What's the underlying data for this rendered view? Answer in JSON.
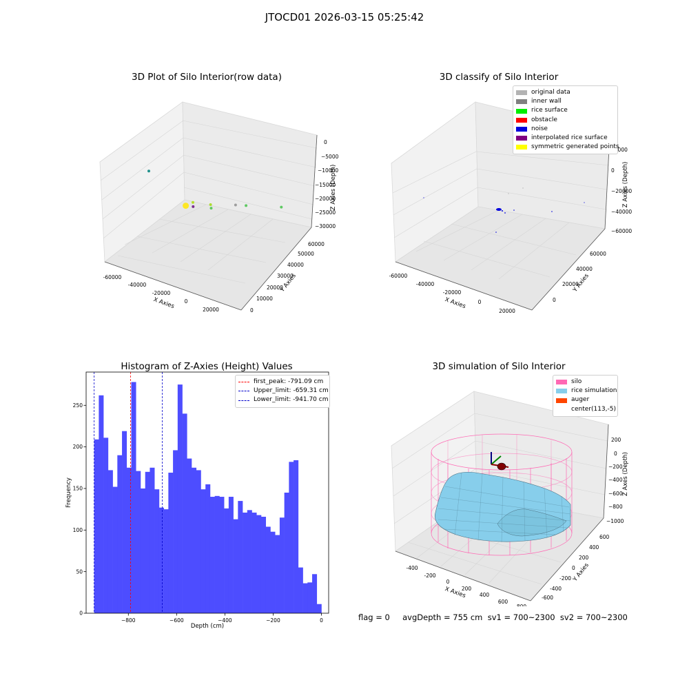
{
  "suptitle": "JTOCD01 2026-03-15 05:25:42",
  "chart_data": [
    {
      "type": "scatter",
      "projection": "3d",
      "title": "3D Plot of Silo Interior(row data)",
      "xlabel": "X Axies",
      "ylabel": "Y Axies",
      "zlabel": "Z Axies (Depth)",
      "x_ticks": [
        "-60000",
        "-40000",
        "-20000",
        "0",
        "20000"
      ],
      "y_ticks": [
        "0",
        "10000",
        "20000",
        "30000",
        "40000",
        "50000",
        "60000"
      ],
      "z_ticks": [
        "0",
        "−5000",
        "−10000",
        "−15000",
        "−20000",
        "−25000",
        "−30000"
      ],
      "points": [
        {
          "x": -30000,
          "y": 25000,
          "z": -17000,
          "color": "#fde725"
        },
        {
          "x": -25000,
          "y": 25000,
          "z": -19000,
          "color": "#b5de2b"
        },
        {
          "x": -17000,
          "y": 30000,
          "z": -18000,
          "color": "#addc30"
        },
        {
          "x": -20000,
          "y": 34000,
          "z": -15000,
          "color": "#5ec962"
        },
        {
          "x": -3000,
          "y": 34000,
          "z": -19000,
          "color": "#9e9e9e"
        },
        {
          "x": 6000,
          "y": 32000,
          "z": -21000,
          "color": "#5ec962"
        },
        {
          "x": 22000,
          "y": 42000,
          "z": -20000,
          "color": "#5ec962"
        },
        {
          "x": -60000,
          "y": 30000,
          "z": -22000,
          "color": "#21918c"
        },
        {
          "x": -6000,
          "y": 3000,
          "z": -28000,
          "color": "#7b2d8e"
        }
      ]
    },
    {
      "type": "scatter",
      "projection": "3d",
      "title": "3D classify of Silo Interior",
      "xlabel": "X Axies",
      "ylabel": "Y Axies",
      "zlabel": "Z Axies (Depth)",
      "x_ticks": [
        "-60000",
        "-40000",
        "-20000",
        "0",
        "20000"
      ],
      "y_ticks": [
        "0",
        "20000",
        "40000",
        "60000"
      ],
      "z_ticks": [
        "20000",
        "0",
        "−20000",
        "−40000",
        "−60000"
      ],
      "legend": [
        {
          "label": "original data",
          "color": "#b3b3b3"
        },
        {
          "label": "inner wall",
          "color": "#808080"
        },
        {
          "label": "rice surface",
          "color": "#00ee00"
        },
        {
          "label": "obstacle",
          "color": "#ff0000"
        },
        {
          "label": "noise",
          "color": "#0000dd"
        },
        {
          "label": "interpolated rice surface",
          "color": "#800080"
        },
        {
          "label": "symmetric generated points",
          "color": "#ffff00"
        }
      ]
    },
    {
      "type": "bar",
      "title": "Histogram of Z-Axies (Height) Values",
      "xlabel": "Depth (cm)",
      "ylabel": "Frequency",
      "x_range": [
        -941.7,
        0
      ],
      "xlim": [
        -975,
        30
      ],
      "ylim": [
        0,
        290
      ],
      "x_ticks": [
        -800,
        -600,
        -400,
        -200,
        0
      ],
      "y_ticks": [
        0,
        50,
        100,
        150,
        200,
        250
      ],
      "values": [
        209,
        262,
        211,
        172,
        152,
        190,
        219,
        175,
        278,
        171,
        150,
        170,
        175,
        149,
        127,
        125,
        169,
        196,
        275,
        240,
        186,
        175,
        172,
        149,
        155,
        140,
        141,
        140,
        126,
        140,
        113,
        135,
        121,
        124,
        121,
        118,
        116,
        104,
        98,
        94,
        115,
        145,
        182,
        184,
        55,
        36,
        37,
        47,
        11
      ],
      "bar_color": "#4d4dff",
      "lines": [
        {
          "label": "first_peak: -791.09 cm",
          "x": -791.09,
          "color": "#ff0000"
        },
        {
          "label": "Upper_limit: -659.31 cm",
          "x": -659.31,
          "color": "#0000cc"
        },
        {
          "label": "Lower_limit: -941.70 cm",
          "x": -941.7,
          "color": "#0000cc"
        }
      ],
      "legend_position": "upper right"
    },
    {
      "type": "surface",
      "projection": "3d",
      "title": "3D simulation of Silo Interior",
      "xlabel": "X Axies",
      "ylabel": "Y Axies",
      "zlabel": "Z Axes (Depth)",
      "x_ticks": [
        "-400",
        "-200",
        "0",
        "200",
        "400",
        "600",
        "800"
      ],
      "y_ticks": [
        "-600",
        "-400",
        "-200",
        "0",
        "200",
        "400",
        "600"
      ],
      "z_ticks": [
        "200",
        "0",
        "−200",
        "−400",
        "−600",
        "−800",
        "−1000"
      ],
      "legend": [
        {
          "label": "silo",
          "color": "#ff69b4"
        },
        {
          "label": "rice simulation",
          "color": "#87ceeb"
        },
        {
          "label": "auger",
          "color": "#ff4500"
        },
        {
          "label": "center(113,-5)",
          "color": "#ffffff"
        }
      ]
    }
  ],
  "status": {
    "text": "flag = 0     avgDepth = 755 cm  sv1 = 700~2300  sv2 = 700~2300"
  }
}
